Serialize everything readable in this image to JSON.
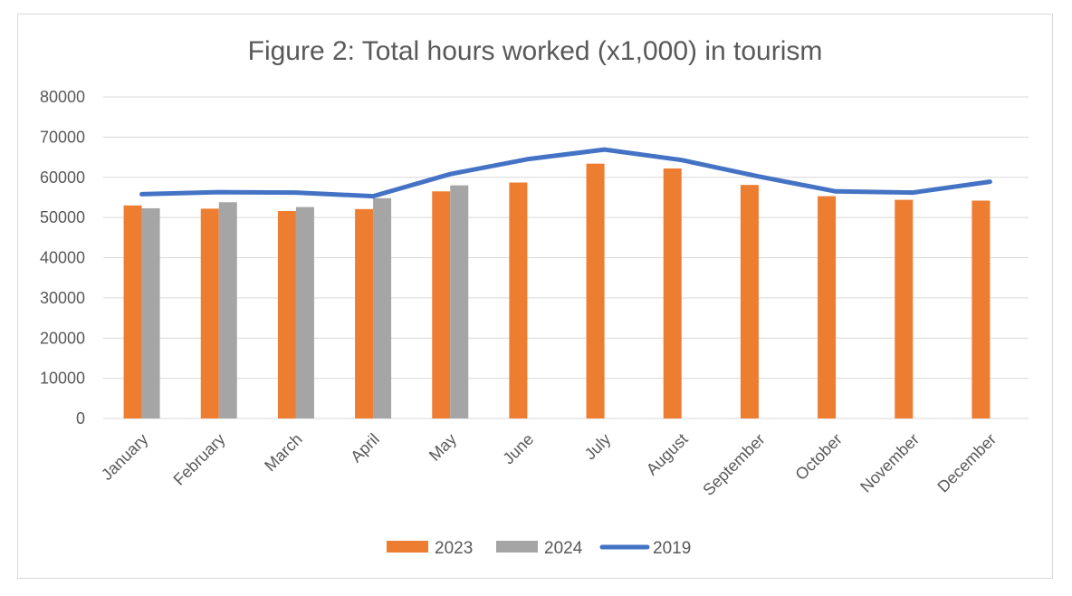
{
  "chart_data": {
    "type": "bar",
    "title": "Figure 2: Total hours worked (x1,000) in tourism",
    "xlabel": "",
    "ylabel": "",
    "ylim": [
      0,
      80000
    ],
    "yticks": [
      0,
      10000,
      20000,
      30000,
      40000,
      50000,
      60000,
      70000,
      80000
    ],
    "categories": [
      "January",
      "February",
      "March",
      "April",
      "May",
      "June",
      "July",
      "August",
      "September",
      "October",
      "November",
      "December"
    ],
    "series": [
      {
        "name": "2023",
        "kind": "bar",
        "color": "#ed7d31",
        "values": [
          53000,
          52200,
          51600,
          52100,
          56500,
          58700,
          63400,
          62200,
          58100,
          55300,
          54400,
          54200
        ]
      },
      {
        "name": "2024",
        "kind": "bar",
        "color": "#a5a5a5",
        "values": [
          52300,
          53800,
          52600,
          54800,
          58000,
          null,
          null,
          null,
          null,
          null,
          null,
          null
        ]
      },
      {
        "name": "2019",
        "kind": "line",
        "color": "#4472c4",
        "values": [
          55800,
          56300,
          56200,
          55300,
          60800,
          64500,
          66900,
          64300,
          60200,
          56500,
          56200,
          58900
        ]
      }
    ],
    "grid": true,
    "legend_position": "bottom"
  }
}
